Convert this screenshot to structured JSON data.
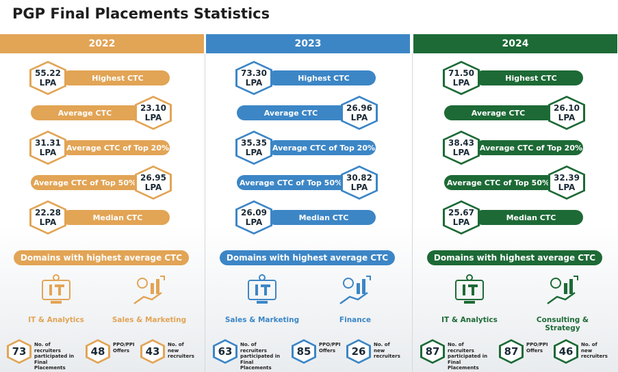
{
  "title": "PGP Final Placements Statistics",
  "columns": [
    {
      "year": "2022",
      "color": "#e2a455",
      "stats": [
        {
          "value": "55.22",
          "unit": "LPA",
          "label": "Highest CTC"
        },
        {
          "value": "23.10",
          "unit": "LPA",
          "label": "Average CTC"
        },
        {
          "value": "31.31",
          "unit": "LPA",
          "label": "Average CTC of Top 20%"
        },
        {
          "value": "26.95",
          "unit": "LPA",
          "label": "Average CTC of Top 50%"
        },
        {
          "value": "22.28",
          "unit": "LPA",
          "label": "Median CTC"
        }
      ],
      "domains_title": "Domains with highest average CTC",
      "domains": [
        "IT & Analytics",
        "Sales & Marketing"
      ],
      "counts": [
        {
          "value": 73,
          "label": "No. of recruiters participated in Final Placements"
        },
        {
          "value": 48,
          "label": "PPO/PPI Offers"
        },
        {
          "value": 43,
          "label": "No. of new recruiters"
        }
      ]
    },
    {
      "year": "2023",
      "color": "#3c86c6",
      "stats": [
        {
          "value": "73.30",
          "unit": "LPA",
          "label": "Highest CTC"
        },
        {
          "value": "26.96",
          "unit": "LPA",
          "label": "Average CTC"
        },
        {
          "value": "35.35",
          "unit": "LPA",
          "label": "Average CTC of Top 20%"
        },
        {
          "value": "30.82",
          "unit": "LPA",
          "label": "Average CTC of Top 50%"
        },
        {
          "value": "26.09",
          "unit": "LPA",
          "label": "Median CTC"
        }
      ],
      "domains_title": "Domains with highest average CTC",
      "domains": [
        "Sales & Marketing",
        "Finance"
      ],
      "counts": [
        {
          "value": 63,
          "label": "No. of recruiters participated in Final Placements"
        },
        {
          "value": 85,
          "label": "PPO/PPI Offers"
        },
        {
          "value": 26,
          "label": "No. of new recruiters"
        }
      ]
    },
    {
      "year": "2024",
      "color": "#1d6a36",
      "stats": [
        {
          "value": "71.50",
          "unit": "LPA",
          "label": "Highest CTC"
        },
        {
          "value": "26.10",
          "unit": "LPA",
          "label": "Average CTC"
        },
        {
          "value": "38.43",
          "unit": "LPA",
          "label": "Average CTC of Top 20%"
        },
        {
          "value": "32.39",
          "unit": "LPA",
          "label": "Average CTC of Top 50%"
        },
        {
          "value": "25.67",
          "unit": "LPA",
          "label": "Median CTC"
        }
      ],
      "domains_title": "Domains with highest average CTC",
      "domains": [
        "IT & Analytics",
        "Consulting & Strategy"
      ],
      "counts": [
        {
          "value": 87,
          "label": "No. of recruiters participated in Final Placements"
        },
        {
          "value": 87,
          "label": "PPO/PPI Offers"
        },
        {
          "value": 46,
          "label": "No. of new recruiters"
        }
      ]
    }
  ]
}
